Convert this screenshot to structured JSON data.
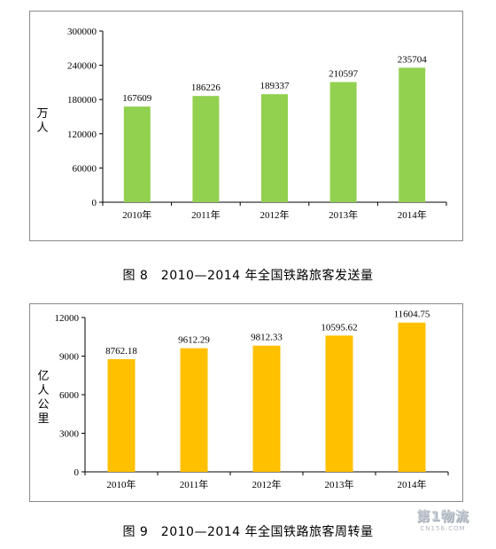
{
  "chart_data": [
    {
      "type": "bar",
      "title": "",
      "ylabel": "万人",
      "xlabel": "",
      "categories": [
        "2010年",
        "2011年",
        "2012年",
        "2013年",
        "2014年"
      ],
      "values": [
        167609,
        186226,
        189337,
        210597,
        235704
      ],
      "data_labels": [
        "167609",
        "186226",
        "189337",
        "210597",
        "235704"
      ],
      "ylim": [
        0,
        300000
      ],
      "yticks": [
        "0",
        "60000",
        "120000",
        "180000",
        "240000",
        "300000"
      ],
      "ytick_values": [
        0,
        60000,
        120000,
        180000,
        240000,
        300000
      ],
      "color": "#92d050",
      "grid": false,
      "legend": "none"
    },
    {
      "type": "bar",
      "title": "",
      "ylabel": "亿人公里",
      "xlabel": "",
      "categories": [
        "2010年",
        "2011年",
        "2012年",
        "2013年",
        "2014年"
      ],
      "values": [
        8762.18,
        9612.29,
        9812.33,
        10595.62,
        11604.75
      ],
      "data_labels": [
        "8762.18",
        "9612.29",
        "9812.33",
        "10595.62",
        "11604.75"
      ],
      "ylim": [
        0,
        12000
      ],
      "yticks": [
        "0",
        "3000",
        "6000",
        "9000",
        "12000"
      ],
      "ytick_values": [
        0,
        3000,
        6000,
        9000,
        12000
      ],
      "color": "#ffc000",
      "grid": false,
      "legend": "none"
    }
  ],
  "captions": {
    "fig8": "图 8　2010—2014 年全国铁路旅客发送量",
    "fig9": "图 9　2010—2014 年全国铁路旅客周转量"
  },
  "watermark": {
    "main": "第1物流",
    "sub": "CN156.COM"
  }
}
